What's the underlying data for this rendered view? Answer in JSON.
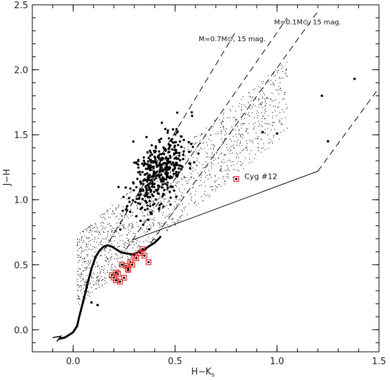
{
  "chart_data": {
    "type": "scatter",
    "title": "",
    "xlabel": "H−K",
    "xlabel_sub": "s",
    "ylabel": "J−H",
    "xlim": [
      -0.2,
      1.5
    ],
    "ylim": [
      -0.17,
      2.5
    ],
    "xticks": [
      0.0,
      0.5,
      1.0,
      1.5
    ],
    "xtick_labels": [
      "0.0",
      "0.5",
      "1.0",
      "1.5"
    ],
    "yticks": [
      0.0,
      0.5,
      1.0,
      1.5,
      2.0,
      2.5
    ],
    "ytick_labels": [
      "0.0",
      "0.5",
      "1.0",
      "1.5",
      "2.0",
      "2.5"
    ],
    "grid": false,
    "legend": "none",
    "colors": {
      "axes": "#000000",
      "points": "#000000",
      "highlight": "#e03030"
    },
    "annotations": [
      {
        "text": "M=0.1M⊙, 15 mag.",
        "x": 1.15,
        "y": 2.35
      },
      {
        "text": "M=0.7M⊙, 15 mag.",
        "x": 0.78,
        "y": 2.22
      },
      {
        "text": "Cyg #12",
        "x": 0.84,
        "y": 1.16
      }
    ],
    "series": [
      {
        "kind": "line",
        "style": "thick",
        "x": [
          -0.07,
          -0.04,
          -0.02,
          0.0,
          0.02,
          0.03,
          0.05,
          0.07,
          0.09,
          0.11,
          0.13,
          0.15,
          0.17,
          0.19,
          0.21,
          0.23,
          0.25,
          0.27,
          0.29,
          0.31,
          0.33,
          0.35,
          0.37,
          0.4,
          0.42,
          0.43
        ],
        "y": [
          -0.07,
          -0.06,
          -0.04,
          -0.02,
          0.03,
          0.1,
          0.22,
          0.35,
          0.47,
          0.56,
          0.61,
          0.64,
          0.65,
          0.64,
          0.62,
          0.6,
          0.59,
          0.585,
          0.58,
          0.59,
          0.605,
          0.62,
          0.64,
          0.67,
          0.7,
          0.72
        ]
      },
      {
        "kind": "line",
        "style": "thin",
        "x": [
          -0.1,
          -0.06,
          -0.08
        ],
        "y": [
          -0.06,
          -0.05,
          -0.09
        ]
      },
      {
        "kind": "line",
        "style": "solid",
        "x": [
          0.29,
          1.2
        ],
        "y": [
          0.69,
          1.22
        ]
      },
      {
        "kind": "line",
        "style": "dashed",
        "x": [
          1.2,
          1.5
        ],
        "y": [
          1.22,
          1.86
        ]
      },
      {
        "kind": "line",
        "style": "dashed",
        "x": [
          0.15,
          0.8
        ],
        "y": [
          0.61,
          2.3
        ]
      },
      {
        "kind": "line",
        "style": "dashed",
        "x": [
          0.26,
          1.05
        ],
        "y": [
          0.62,
          2.4
        ]
      },
      {
        "kind": "line",
        "style": "dashed",
        "x": [
          0.35,
          1.2
        ],
        "y": [
          0.6,
          2.45
        ]
      },
      {
        "kind": "scatter",
        "style": "large-dots",
        "seed": 11,
        "count": 420,
        "center": [
          0.42,
          1.22
        ],
        "spread": [
          0.07,
          0.13
        ]
      },
      {
        "kind": "scatter",
        "style": "large-dots-sparse",
        "x": [
          1.38,
          1.22,
          0.93,
          1.0,
          1.25,
          0.12,
          0.09
        ],
        "y": [
          1.93,
          1.8,
          1.52,
          1.51,
          1.45,
          0.19,
          0.21
        ]
      },
      {
        "kind": "scatter",
        "style": "small-dots",
        "seed": 27,
        "count": 1500,
        "band": {
          "x0": 0.02,
          "x1": 1.05,
          "slope": 2.0,
          "intercept": 0.45,
          "width": 0.28
        }
      },
      {
        "kind": "scatter",
        "style": "highlighted",
        "x": [
          0.19,
          0.2,
          0.21,
          0.22,
          0.23,
          0.25,
          0.26,
          0.27,
          0.28,
          0.29,
          0.3,
          0.31,
          0.33,
          0.34,
          0.35,
          0.37,
          0.27,
          0.24,
          0.21,
          0.8
        ],
        "y": [
          0.42,
          0.4,
          0.38,
          0.43,
          0.37,
          0.4,
          0.49,
          0.47,
          0.52,
          0.5,
          0.57,
          0.55,
          0.59,
          0.62,
          0.57,
          0.52,
          0.46,
          0.5,
          0.44,
          1.16
        ]
      }
    ]
  }
}
